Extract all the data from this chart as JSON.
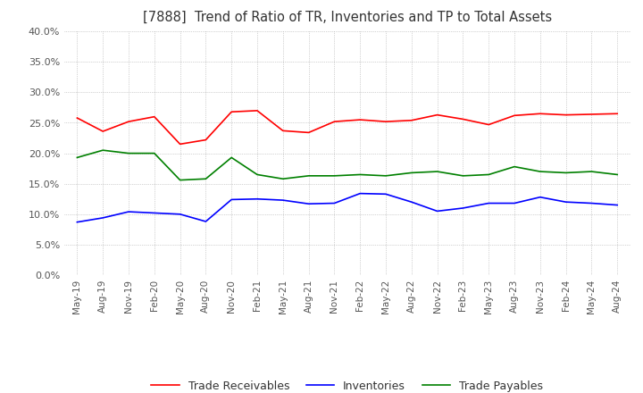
{
  "title": "[7888]  Trend of Ratio of TR, Inventories and TP to Total Assets",
  "x_labels": [
    "May-19",
    "Aug-19",
    "Nov-19",
    "Feb-20",
    "May-20",
    "Aug-20",
    "Nov-20",
    "Feb-21",
    "May-21",
    "Aug-21",
    "Nov-21",
    "Feb-22",
    "May-22",
    "Aug-22",
    "Nov-22",
    "Feb-23",
    "May-23",
    "Aug-23",
    "Nov-23",
    "Feb-24",
    "May-24",
    "Aug-24"
  ],
  "trade_receivables": [
    0.258,
    0.236,
    0.252,
    0.26,
    0.215,
    0.222,
    0.268,
    0.27,
    0.237,
    0.234,
    0.252,
    0.255,
    0.252,
    0.254,
    0.263,
    0.256,
    0.247,
    0.262,
    0.265,
    0.263,
    0.264,
    0.265
  ],
  "inventories": [
    0.087,
    0.094,
    0.104,
    0.102,
    0.1,
    0.088,
    0.124,
    0.125,
    0.123,
    0.117,
    0.118,
    0.134,
    0.133,
    0.12,
    0.105,
    0.11,
    0.118,
    0.118,
    0.128,
    0.12,
    0.118,
    0.115
  ],
  "trade_payables": [
    0.193,
    0.205,
    0.2,
    0.2,
    0.156,
    0.158,
    0.193,
    0.165,
    0.158,
    0.163,
    0.163,
    0.165,
    0.163,
    0.168,
    0.17,
    0.163,
    0.165,
    0.178,
    0.17,
    0.168,
    0.17,
    0.165
  ],
  "tr_color": "#ff0000",
  "inv_color": "#0000ff",
  "tp_color": "#008000",
  "ylim": [
    0.0,
    0.4
  ],
  "yticks": [
    0.0,
    0.05,
    0.1,
    0.15,
    0.2,
    0.25,
    0.3,
    0.35,
    0.4
  ],
  "background_color": "#ffffff",
  "grid_color": "#aaaaaa"
}
